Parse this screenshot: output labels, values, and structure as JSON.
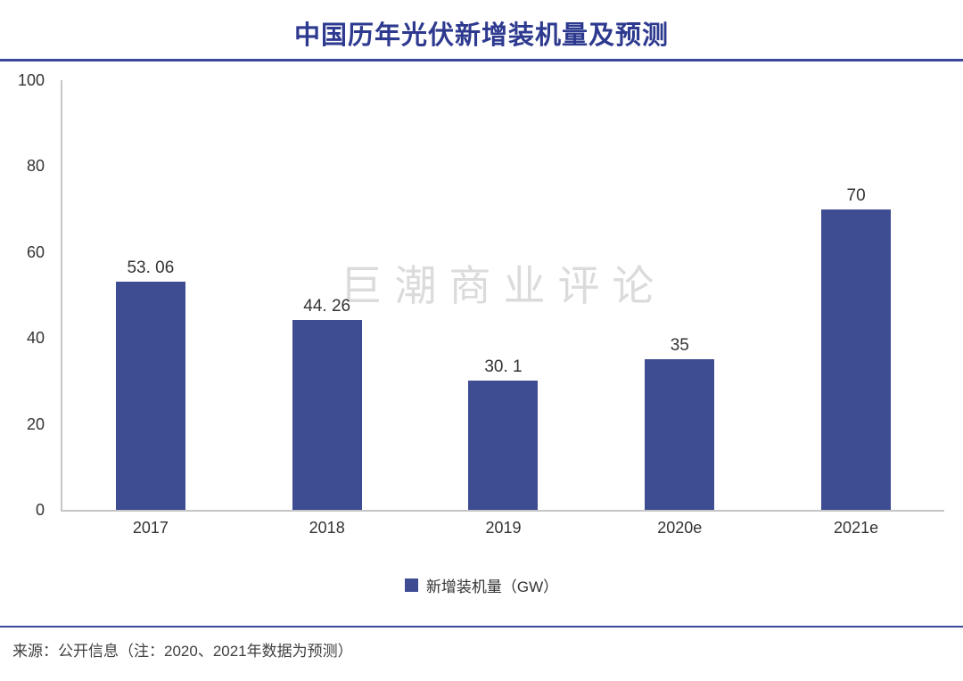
{
  "title": "中国历年光伏新增装机量及预测",
  "watermark": "巨潮商业评论",
  "legend": {
    "label": "新增装机量（GW）"
  },
  "source_note": "来源：公开信息（注：2020、2021年数据为预测）",
  "colors": {
    "bar": "#3E4C91",
    "title": "#2E3A8F",
    "divider": "#3A479B",
    "axis": "#C6C6C6",
    "text": "#333333",
    "watermark": "#DBDBDB"
  },
  "chart_data": {
    "type": "bar",
    "categories": [
      "2017",
      "2018",
      "2019",
      "2020e",
      "2021e"
    ],
    "values": [
      53.06,
      44.26,
      30.1,
      35,
      70
    ],
    "value_labels": [
      "53. 06",
      "44. 26",
      "30. 1",
      "35",
      "70"
    ],
    "series_name": "新增装机量（GW）",
    "title": "中国历年光伏新增装机量及预测",
    "xlabel": "",
    "ylabel": "",
    "ylim": [
      0,
      100
    ],
    "yticks": [
      0,
      20,
      40,
      60,
      80,
      100
    ],
    "grid": false,
    "legend_position": "bottom"
  }
}
